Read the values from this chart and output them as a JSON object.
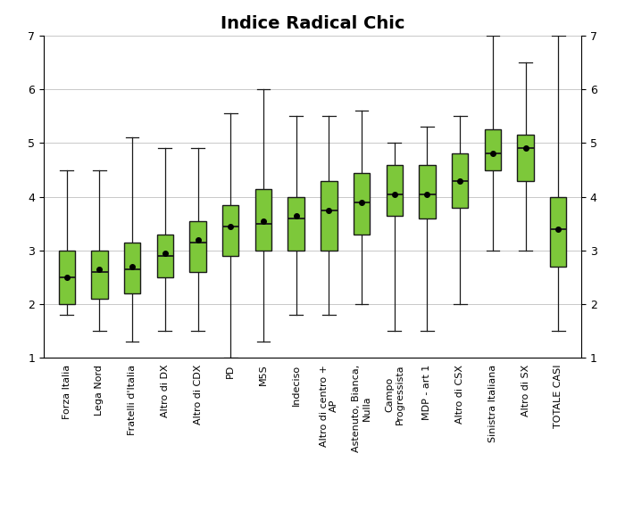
{
  "title": "Indice Radical Chic",
  "ylim": [
    1,
    7
  ],
  "yticks": [
    1,
    2,
    3,
    4,
    5,
    6,
    7
  ],
  "box_color": "#7DC83A",
  "box_edge_color": "#1a1a1a",
  "median_color": "#1a1a1a",
  "whisker_color": "#1a1a1a",
  "mean_color": "#000000",
  "background_color": "#FFFFFF",
  "figsize": [
    7.0,
    5.73
  ],
  "dpi": 100,
  "categories": [
    "Forza Italia",
    "Lega Nord",
    "Fratelli d'Italia",
    "Altro di DX",
    "Altro di CDX",
    "PD",
    "M5S",
    "Indeciso",
    "Altro di centro +\nAP",
    "Astenuto, Bianca,\nNulla",
    "Campo\nProgressista",
    "MDP - art 1",
    "Altro di CSX",
    "Sinistra Italiana",
    "Altro di SX",
    "TOTALE CASI"
  ],
  "boxplot_stats": [
    {
      "whislo": 1.8,
      "q1": 2.0,
      "med": 2.5,
      "q3": 3.0,
      "whishi": 4.5,
      "mean": 2.5
    },
    {
      "whislo": 1.5,
      "q1": 2.1,
      "med": 2.6,
      "q3": 3.0,
      "whishi": 4.5,
      "mean": 2.65
    },
    {
      "whislo": 1.3,
      "q1": 2.2,
      "med": 2.65,
      "q3": 3.15,
      "whishi": 5.1,
      "mean": 2.7
    },
    {
      "whislo": 1.5,
      "q1": 2.5,
      "med": 2.9,
      "q3": 3.3,
      "whishi": 4.9,
      "mean": 2.95
    },
    {
      "whislo": 1.5,
      "q1": 2.6,
      "med": 3.15,
      "q3": 3.55,
      "whishi": 4.9,
      "mean": 3.2
    },
    {
      "whislo": 1.0,
      "q1": 2.9,
      "med": 3.45,
      "q3": 3.85,
      "whishi": 5.55,
      "mean": 3.45
    },
    {
      "whislo": 1.3,
      "q1": 3.0,
      "med": 3.5,
      "q3": 4.15,
      "whishi": 6.0,
      "mean": 3.55
    },
    {
      "whislo": 1.8,
      "q1": 3.0,
      "med": 3.6,
      "q3": 4.0,
      "whishi": 5.5,
      "mean": 3.65
    },
    {
      "whislo": 1.8,
      "q1": 3.0,
      "med": 3.75,
      "q3": 4.3,
      "whishi": 5.5,
      "mean": 3.75
    },
    {
      "whislo": 2.0,
      "q1": 3.3,
      "med": 3.9,
      "q3": 4.45,
      "whishi": 5.6,
      "mean": 3.9
    },
    {
      "whislo": 1.5,
      "q1": 3.65,
      "med": 4.05,
      "q3": 4.6,
      "whishi": 5.0,
      "mean": 4.05
    },
    {
      "whislo": 1.5,
      "q1": 3.6,
      "med": 4.05,
      "q3": 4.6,
      "whishi": 5.3,
      "mean": 4.05
    },
    {
      "whislo": 2.0,
      "q1": 3.8,
      "med": 4.3,
      "q3": 4.8,
      "whishi": 5.5,
      "mean": 4.3
    },
    {
      "whislo": 3.0,
      "q1": 4.5,
      "med": 4.8,
      "q3": 5.25,
      "whishi": 7.0,
      "mean": 4.8
    },
    {
      "whislo": 3.0,
      "q1": 4.3,
      "med": 4.9,
      "q3": 5.15,
      "whishi": 6.5,
      "mean": 4.9
    },
    {
      "whislo": 1.5,
      "q1": 2.7,
      "med": 3.4,
      "q3": 4.0,
      "whishi": 7.0,
      "mean": 3.4
    }
  ],
  "title_fontsize": 14,
  "tick_fontsize": 8,
  "ytick_fontsize": 9,
  "box_width": 0.5,
  "cap_ratio": 0.4,
  "mean_markersize": 4,
  "grid_color": "#C8C8C8",
  "grid_linewidth": 0.7
}
